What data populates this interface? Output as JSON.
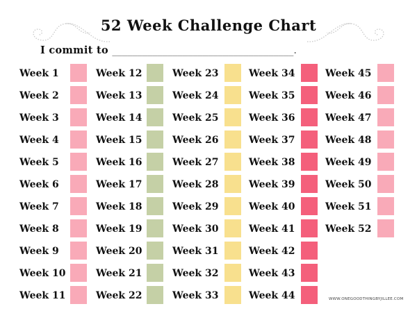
{
  "title": "52 Week Challenge Chart",
  "commit": {
    "label": "I commit to",
    "blank": "____________________________________."
  },
  "colors": {
    "col1": "#f9aab8",
    "col2": "#c5d0a6",
    "col3": "#f8e08e",
    "col4": "#f45f7b",
    "col5": "#f9aab8",
    "swirl": "#cccccc"
  },
  "columns": [
    {
      "color": "#f9aab8",
      "weeks": [
        "Week 1",
        "Week 2",
        "Week 3",
        "Week 4",
        "Week 5",
        "Week 6",
        "Week 7",
        "Week 8",
        "Week 9",
        "Week 10",
        "Week 11"
      ]
    },
    {
      "color": "#c5d0a6",
      "weeks": [
        "Week 12",
        "Week 13",
        "Week 14",
        "Week 15",
        "Week 16",
        "Week 17",
        "Week 18",
        "Week 19",
        "Week 20",
        "Week 21",
        "Week 22"
      ]
    },
    {
      "color": "#f8e08e",
      "weeks": [
        "Week 23",
        "Week 24",
        "Week 25",
        "Week 26",
        "Week 27",
        "Week 28",
        "Week 29",
        "Week 30",
        "Week 31",
        "Week 32",
        "Week 33"
      ]
    },
    {
      "color": "#f45f7b",
      "weeks": [
        "Week 34",
        "Week 35",
        "Week 36",
        "Week 37",
        "Week 38",
        "Week 39",
        "Week 40",
        "Week 41",
        "Week 42",
        "Week 43",
        "Week 44"
      ]
    },
    {
      "color": "#f9aab8",
      "weeks": [
        "Week 45",
        "Week 46",
        "Week 47",
        "Week 48",
        "Week 49",
        "Week 50",
        "Week 51",
        "Week 52"
      ]
    }
  ],
  "footer": "WWW.ONEGOODTHINGBYJILLEE.COM"
}
